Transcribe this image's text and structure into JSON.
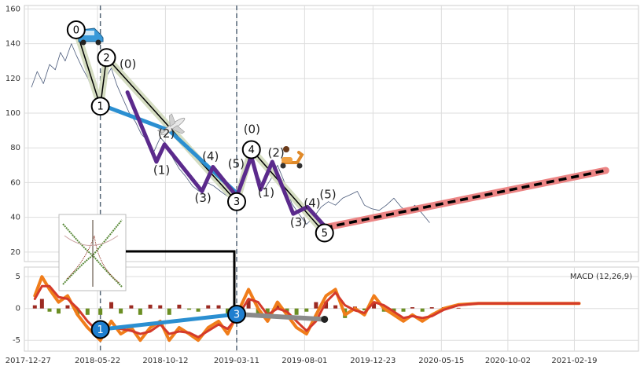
{
  "chart_data": [
    {
      "type": "line",
      "xlim": [
        "2017-12-19",
        "2021-07-04"
      ],
      "ylim": [
        14.5,
        162
      ],
      "yticks": [
        20,
        40,
        60,
        80,
        100,
        120,
        140,
        160
      ],
      "grid": true,
      "vlines": [
        "2018-05-28",
        "2019-03-11"
      ],
      "x": [
        "2018-01-03",
        "2018-01-15",
        "2018-01-28",
        "2018-02-10",
        "2018-02-22",
        "2018-03-05",
        "2018-03-15",
        "2018-03-28",
        "2018-04-08",
        "2018-04-20",
        "2018-05-02",
        "2018-05-15",
        "2018-05-28",
        "2018-06-08",
        "2018-06-20",
        "2018-07-02",
        "2018-07-15",
        "2018-07-28",
        "2018-08-10",
        "2018-08-22",
        "2018-09-05",
        "2018-09-18",
        "2018-10-01",
        "2018-10-14",
        "2018-10-28",
        "2018-11-10",
        "2018-11-25",
        "2018-12-08",
        "2018-12-22",
        "2019-01-08",
        "2019-01-22",
        "2019-02-05",
        "2019-02-20",
        "2019-03-11",
        "2019-03-25",
        "2019-04-08",
        "2019-04-22",
        "2019-05-08",
        "2019-05-22",
        "2019-06-05",
        "2019-06-20",
        "2019-07-05",
        "2019-07-20",
        "2019-08-05",
        "2019-08-20",
        "2019-09-05",
        "2019-09-20",
        "2019-10-05",
        "2019-10-20",
        "2019-11-05",
        "2019-11-20",
        "2019-12-05",
        "2019-12-20",
        "2020-01-05",
        "2020-01-20",
        "2020-02-05",
        "2020-02-20",
        "2020-03-05",
        "2020-03-20",
        "2020-04-05",
        "2020-04-20"
      ],
      "series": [
        {
          "color": "#4a5a7a",
          "line_width": 0.8,
          "values": [
            115,
            124,
            117,
            128,
            125,
            135,
            130,
            140,
            133,
            126,
            120,
            110,
            104,
            120,
            126,
            116,
            108,
            100,
            95,
            88,
            84,
            78,
            86,
            82,
            74,
            68,
            63,
            58,
            55,
            60,
            58,
            55,
            52,
            49,
            62,
            75,
            66,
            56,
            62,
            70,
            60,
            48,
            42,
            36,
            40,
            46,
            49,
            47,
            51,
            53,
            55,
            47,
            45,
            44,
            47,
            51,
            46,
            43,
            47,
            42,
            37
          ]
        },
        {
          "color": "#d5ddc2",
          "line_width": 9,
          "x": [
            "2018-04-07",
            "2018-05-28",
            "2018-06-10",
            "2019-03-11",
            "2019-04-11",
            "2019-09-12"
          ],
          "values": [
            148,
            104,
            132,
            49,
            79,
            31
          ]
        },
        {
          "color": "#000000",
          "line_width": 1.5,
          "x": [
            "2018-04-07",
            "2018-05-28",
            "2018-06-10",
            "2019-03-11",
            "2019-04-11",
            "2019-09-12"
          ],
          "values": [
            148,
            104,
            132,
            49,
            79,
            31
          ],
          "labels": [
            "0",
            "1",
            "2",
            "3",
            "4",
            "5"
          ],
          "label_fill": "#ffffff",
          "label_color": "#000000"
        },
        {
          "color": "#2b8fd1",
          "line_width": 5,
          "x": [
            "2018-05-28",
            "2018-10-20",
            "2019-03-11"
          ],
          "values": [
            105,
            90,
            54
          ]
        },
        {
          "color": "#5b2a8c",
          "line_width": 5,
          "x": [
            "2018-07-24",
            "2018-09-23",
            "2018-10-10",
            "2018-12-28",
            "2019-01-20",
            "2019-03-11",
            "2019-04-11",
            "2019-04-30",
            "2019-05-25",
            "2019-07-08",
            "2019-08-07",
            "2019-09-12"
          ],
          "values": [
            112,
            72,
            82,
            55,
            69,
            52,
            75,
            56,
            72,
            42,
            46,
            35
          ]
        },
        {
          "color": "#ec8585",
          "line_width": 9,
          "x": [
            "2019-09-12",
            "2021-04-26"
          ],
          "values": [
            34,
            67
          ]
        },
        {
          "color": "#000000",
          "line_width": 3.5,
          "linestyle": "dashed",
          "x": [
            "2019-09-12",
            "2021-04-26"
          ],
          "values": [
            34,
            67
          ]
        }
      ],
      "annotations": [
        {
          "text": "(0)",
          "x": "2018-07-25",
          "y": 128
        },
        {
          "text": "(2)",
          "x": "2018-10-14",
          "y": 88
        },
        {
          "text": "(1)",
          "x": "2018-10-04",
          "y": 67
        },
        {
          "text": "(4)",
          "x": "2019-01-15",
          "y": 75
        },
        {
          "text": "(3)",
          "x": "2018-12-30",
          "y": 51
        },
        {
          "text": "(5)",
          "x": "2019-03-10",
          "y": 70.5
        },
        {
          "text": "(0)",
          "x": "2019-04-12",
          "y": 90.5
        },
        {
          "text": "(2)",
          "x": "2019-06-02",
          "y": 77
        },
        {
          "text": "(1)",
          "x": "2019-05-12",
          "y": 54
        },
        {
          "text": "(4)",
          "x": "2019-08-17",
          "y": 48
        },
        {
          "text": "(3)",
          "x": "2019-07-19",
          "y": 37
        },
        {
          "text": "(5)",
          "x": "2019-09-19",
          "y": 53
        }
      ]
    },
    {
      "type": "line",
      "label": "MACD (12,26,9)",
      "xlim": [
        "2017-12-19",
        "2021-07-04"
      ],
      "ylim": [
        -6.7,
        6.5
      ],
      "yticks": [
        -5,
        0,
        5
      ],
      "xticks": [
        "2017-12-27",
        "2018-05-22",
        "2018-10-12",
        "2019-03-11",
        "2019-08-01",
        "2019-12-23",
        "2020-05-15",
        "2020-10-02",
        "2021-02-19"
      ],
      "grid": true,
      "vlines": [
        "2018-05-28",
        "2019-03-11"
      ],
      "x": [
        "2018-01-10",
        "2018-01-25",
        "2018-02-10",
        "2018-03-01",
        "2018-03-20",
        "2018-04-10",
        "2018-05-01",
        "2018-05-28",
        "2018-06-20",
        "2018-07-10",
        "2018-08-01",
        "2018-08-20",
        "2018-09-10",
        "2018-10-01",
        "2018-10-20",
        "2018-11-10",
        "2018-12-01",
        "2018-12-20",
        "2019-01-10",
        "2019-02-01",
        "2019-02-20",
        "2019-03-11",
        "2019-04-05",
        "2019-04-25",
        "2019-05-15",
        "2019-06-05",
        "2019-06-25",
        "2019-07-15",
        "2019-08-05",
        "2019-08-25",
        "2019-09-15",
        "2019-10-05",
        "2019-10-25",
        "2019-11-15",
        "2019-12-05",
        "2019-12-25",
        "2020-01-15",
        "2020-02-05",
        "2020-02-25",
        "2020-03-15",
        "2020-04-05",
        "2020-04-25",
        "2020-05-20",
        "2020-06-20",
        "2020-08-01",
        "2021-03-01"
      ],
      "series": [
        {
          "type": "bar",
          "color_pos": "#9c2a22",
          "color_neg": "#6b8e23",
          "values": [
            0.5,
            1.5,
            -0.5,
            -0.8,
            0.5,
            -1,
            -1,
            -1,
            1,
            -0.8,
            0.5,
            -1,
            0.6,
            0.5,
            -1,
            0.6,
            -0.2,
            -0.5,
            0.5,
            0.5,
            -0.8,
            0.5,
            1.5,
            -1,
            -1,
            1,
            -0.5,
            -1,
            -0.5,
            1,
            1,
            0.5,
            -1.5,
            0.3,
            -0.3,
            1,
            -0.5,
            -0.5,
            -0.5,
            0.2,
            -0.5,
            0.2,
            0.2,
            0.1,
            0,
            0
          ]
        },
        {
          "color": "#f07d1a",
          "line_width": 4,
          "values": [
            2,
            5,
            3,
            1,
            2,
            -1,
            -3,
            -5,
            -2,
            -4,
            -3,
            -5,
            -3,
            -2,
            -5,
            -3,
            -4,
            -5,
            -3,
            -2,
            -4,
            -1,
            3,
            0,
            -2,
            1,
            -1,
            -3,
            -4,
            -1,
            2,
            3,
            -1,
            0,
            -1,
            2,
            0,
            -1,
            -2,
            -1,
            -2,
            -1,
            0,
            0.6,
            0.8,
            0.8
          ]
        },
        {
          "color": "#d43a2a",
          "line_width": 3,
          "values": [
            1.5,
            3.5,
            3.5,
            1.8,
            1.5,
            0,
            -2,
            -4,
            -3,
            -3.2,
            -3.5,
            -4,
            -3.6,
            -2.5,
            -4,
            -3.6,
            -3.8,
            -4.5,
            -3.5,
            -2.5,
            -3.2,
            -1.5,
            1.5,
            1,
            -1,
            0,
            -0.5,
            -2,
            -3.5,
            -2,
            1,
            2.5,
            0.5,
            -0.3,
            -0.7,
            1,
            0.5,
            -0.5,
            -1.5,
            -1.2,
            -1.5,
            -1.2,
            -0.2,
            0.5,
            0.8,
            0.8
          ]
        },
        {
          "color": "#8a8a8a",
          "line_width": 6,
          "markers": "dot",
          "x": [
            "2019-03-11",
            "2019-09-12"
          ],
          "values": [
            -0.9,
            -1.7
          ]
        },
        {
          "color": "#2b8fd1",
          "line_width": 5,
          "x": [
            "2018-05-28",
            "2019-03-11"
          ],
          "values": [
            -3.3,
            -0.9
          ],
          "labels": [
            "1",
            "3"
          ],
          "label_fill": "#1f7fcf",
          "label_color": "#ffffff"
        }
      ]
    }
  ]
}
